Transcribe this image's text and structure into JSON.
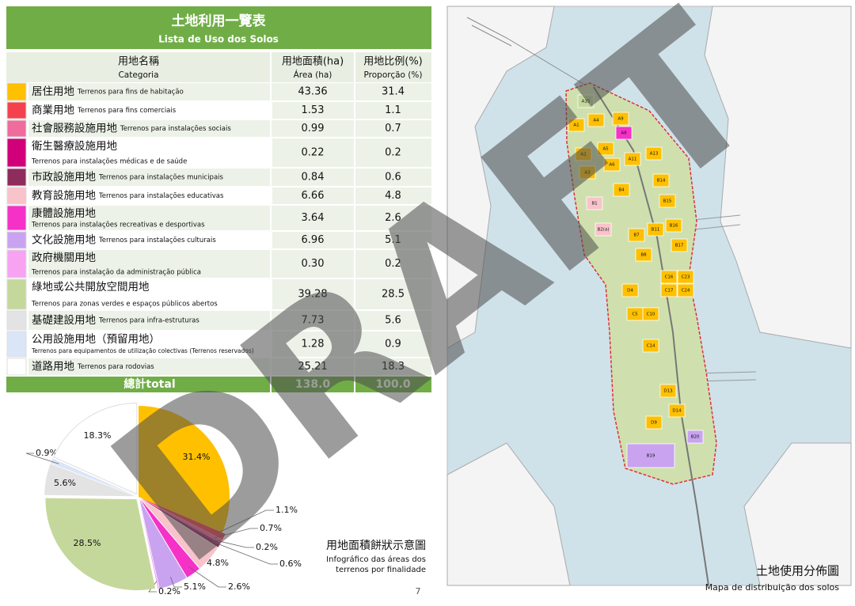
{
  "table": {
    "title": "土地利用一覽表",
    "subtitle": "Lista de Uso dos Solos",
    "headers": [
      [
        "用地名稱",
        "Categoria"
      ],
      [
        "用地面積(ha)",
        "Área (ha)"
      ],
      [
        "用地比例(%)",
        "Proporção (%)"
      ]
    ],
    "rows": [
      {
        "color": "#ffc000",
        "name": "居住用地",
        "name_pt": "Terrenos para fins de habitação",
        "area": "43.36",
        "pct": "31.4"
      },
      {
        "color": "#f5414d",
        "name": "商業用地",
        "name_pt": "Terrenos para fins comerciais",
        "area": "1.53",
        "pct": "1.1"
      },
      {
        "color": "#ef6c9c",
        "name": "社會服務設施用地",
        "name_pt": "Terrenos para instalações sociais",
        "area": "0.99",
        "pct": "0.7"
      },
      {
        "color": "#d1007a",
        "name": "衛生醫療設施用地",
        "name_pt": "Terrenos para instalações médicas e de saúde",
        "area": "0.22",
        "pct": "0.2"
      },
      {
        "color": "#8e2c5c",
        "name": "市政設施用地",
        "name_pt": "Terrenos para instalações municipais",
        "area": "0.84",
        "pct": "0.6"
      },
      {
        "color": "#f8c3cb",
        "name": "教育設施用地",
        "name_pt": "Terrenos para instalações educativas",
        "area": "6.66",
        "pct": "4.8"
      },
      {
        "color": "#f531c8",
        "name": "康體設施用地",
        "name_pt": "Terrenos para instalações recreativas e desportivas",
        "area": "3.64",
        "pct": "2.6"
      },
      {
        "color": "#c9a3f0",
        "name": "文化設施用地",
        "name_pt": "Terrenos para instalações culturais",
        "area": "6.96",
        "pct": "5.1"
      },
      {
        "color": "#f7a3f2",
        "name": "政府機關用地",
        "name_pt": "Terrenos para instalação da administração pública",
        "area": "0.30",
        "pct": "0.2"
      },
      {
        "color": "#c5d89c",
        "name": "綠地或公共開放空間用地",
        "name_pt": "Terrenos para zonas verdes e espaços públicos abertos",
        "area": "39.28",
        "pct": "28.5"
      },
      {
        "color": "#e3e3e3",
        "name": "基礎建設用地",
        "name_pt": "Terrenos para infra-estruturas",
        "area": "7.73",
        "pct": "5.6"
      },
      {
        "color": "#dbe5f8",
        "name": "公用設施用地（預留用地）",
        "name_pt": "Terrenos para equipamentos de utilização colectivas (Terrenos reservados)",
        "area": "1.28",
        "pct": "0.9"
      },
      {
        "color": "#ffffff",
        "name": "道路用地",
        "name_pt": "Terrenos para rodovias",
        "area": "25.21",
        "pct": "18.3"
      }
    ],
    "total": {
      "label": "總計total",
      "area": "138.0",
      "pct": "100.0"
    }
  },
  "chart_data": {
    "type": "pie",
    "values": [
      31.4,
      1.1,
      0.7,
      0.2,
      0.6,
      4.8,
      2.6,
      5.1,
      0.2,
      28.5,
      5.6,
      0.9,
      18.3
    ],
    "value_labels": [
      "31.4%",
      "1.1%",
      "0.7%",
      "0.2%",
      "0.6%",
      "4.8%",
      "2.6%",
      "5.1%",
      "0.2%",
      "28.5%",
      "5.6%",
      "0.9%",
      "18.3%"
    ],
    "colors": [
      "#ffc000",
      "#f5414d",
      "#ef6c9c",
      "#d1007a",
      "#8e2c5c",
      "#f8c3cb",
      "#f531c8",
      "#c9a3f0",
      "#f7a3f2",
      "#c5d89c",
      "#e3e3e3",
      "#dbe5f8",
      "#ffffff"
    ],
    "title": "用地面積餅狀示意圖",
    "subtitle": [
      "Infográfico das áreas dos",
      "terrenos por finalidade"
    ]
  },
  "map": {
    "title": "土地使用分佈圖",
    "subtitle": "Mapa de distribuição dos solos",
    "lots": [
      "A1",
      "A2",
      "A3",
      "A4",
      "A5",
      "A6",
      "A8",
      "A9",
      "A11",
      "A13",
      "A15",
      "B1",
      "B2(a)",
      "B4",
      "B7",
      "B8",
      "B11",
      "B14",
      "B15",
      "B16",
      "B17",
      "B19",
      "B20",
      "C5",
      "C10",
      "C14",
      "C16",
      "C17",
      "C23",
      "C24",
      "D4",
      "D9",
      "D13",
      "D14"
    ]
  },
  "page_number": "7",
  "watermark": "DRAFT"
}
